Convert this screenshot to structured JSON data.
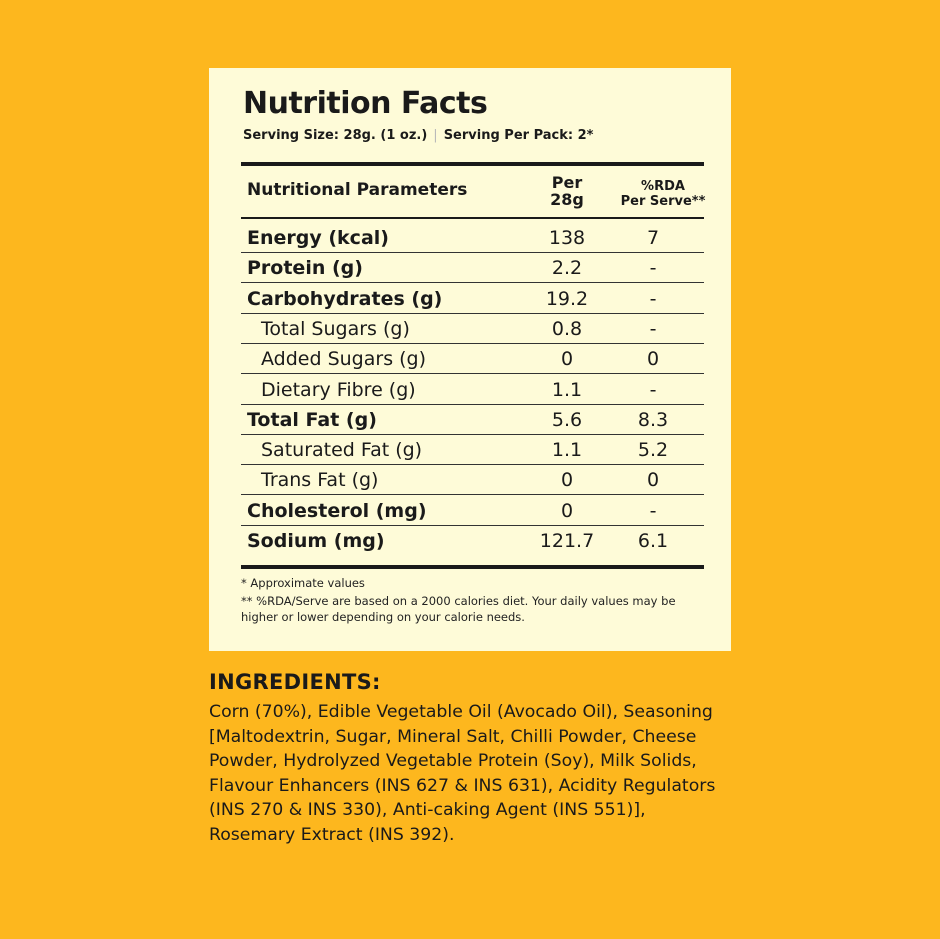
{
  "panel": {
    "title": "Nutrition Facts",
    "serving_size": "Serving Size: 28g. (1 oz.)",
    "separator": "|",
    "servings_per_pack": "Serving Per Pack: 2*"
  },
  "table": {
    "header": {
      "param": "Nutritional Parameters",
      "per_line1": "Per",
      "per_line2": "28g",
      "rda_line1": "%RDA",
      "rda_line2": "Per Serve**"
    },
    "rows": [
      {
        "name": "Energy (kcal)",
        "per": "138",
        "rda": "7"
      },
      {
        "name": "Protein (g)",
        "per": "2.2",
        "rda": "-"
      },
      {
        "name": "Carbohydrates (g)",
        "per": "19.2",
        "rda": "-"
      },
      {
        "name": "Total Sugars (g)",
        "per": "0.8",
        "rda": "-"
      },
      {
        "name": "Added Sugars (g)",
        "per": "0",
        "rda": "0"
      },
      {
        "name": "Dietary Fibre (g)",
        "per": "1.1",
        "rda": "-"
      },
      {
        "name": "Total Fat (g)",
        "per": "5.6",
        "rda": "8.3"
      },
      {
        "name": "Saturated Fat (g)",
        "per": "1.1",
        "rda": "5.2"
      },
      {
        "name": "Trans Fat (g)",
        "per": "0",
        "rda": "0"
      },
      {
        "name": "Cholesterol (mg)",
        "per": "0",
        "rda": "-"
      },
      {
        "name": "Sodium (mg)",
        "per": "121.7",
        "rda": "6.1"
      }
    ]
  },
  "footnotes": {
    "approx": "* Approximate values",
    "rda_note": "** %RDA/Serve are based on a 2000 calories diet. Your daily values may be higher or lower depending on your calorie needs."
  },
  "ingredients": {
    "title": "INGREDIENTS:",
    "text": "Corn (70%), Edible Vegetable Oil (Avocado Oil), Seasoning [Maltodextrin, Sugar, Mineral Salt, Chilli Powder, Cheese Powder, Hydrolyzed Vegetable Protein (Soy), Milk Solids, Flavour Enhancers (INS 627 & INS 631), Acidity Regulators (INS 270 & INS 330), Anti-caking Agent (INS 551)], Rosemary Extract (INS 392)."
  },
  "colors": {
    "background": "#fdb71e",
    "panel": "#fefbd8",
    "text": "#1a1a1a"
  }
}
